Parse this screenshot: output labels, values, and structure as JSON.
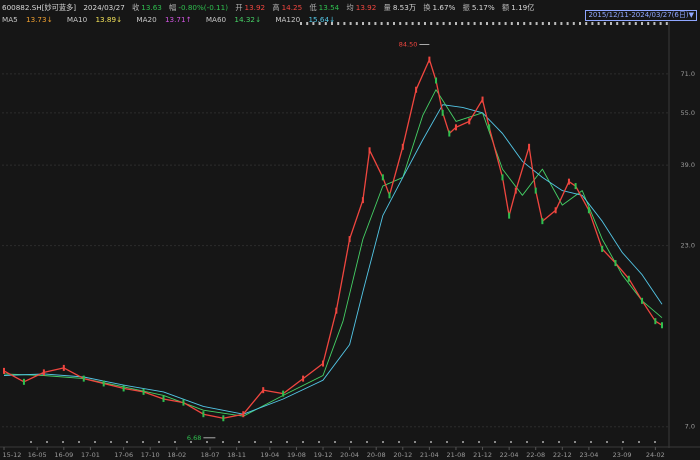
{
  "header": {
    "code": "600882.SH[妙可蓝多]",
    "date": "2024/03/27",
    "close_label": "收",
    "close": "13.63",
    "change_label": "幅",
    "change": "-0.80%(-0.11)",
    "open_label": "开",
    "open": "13.92",
    "high_label": "高",
    "high": "14.25",
    "low_label": "低",
    "low": "13.54",
    "avg_label": "均",
    "avg": "13.92",
    "volume_label": "量",
    "volume": "8.53万",
    "turnover_label": "换",
    "turnover": "1.67%",
    "amplitude_label": "振",
    "amplitude": "5.17%",
    "amount_label": "额",
    "amount": "1.19亿",
    "range": "2015/12/11-2024/03/27(6日)"
  },
  "ma_legend": [
    {
      "name": "MA5",
      "value": "13.73↓",
      "color": "#f0a030"
    },
    {
      "name": "MA10",
      "value": "13.89↓",
      "color": "#f3e35a"
    },
    {
      "name": "MA20",
      "value": "13.71↑",
      "color": "#d055e0"
    },
    {
      "name": "MA60",
      "value": "14.32↓",
      "color": "#45d065"
    },
    {
      "name": "MA120",
      "value": "15.64↓",
      "color": "#53c6e6"
    }
  ],
  "chart_data": {
    "type": "line",
    "yscale": "log",
    "ylim": [
      6.5,
      96
    ],
    "y_ticks": [
      7.0,
      23.0,
      39.0,
      55.0,
      71.0
    ],
    "x_ticks": [
      "15-12",
      "16-05",
      "16-09",
      "17-01",
      "17-06",
      "17-10",
      "18-02",
      "18-07",
      "18-11",
      "19-04",
      "19-08",
      "19-12",
      "20-04",
      "20-08",
      "20-12",
      "21-04",
      "21-08",
      "21-12",
      "22-04",
      "22-08",
      "22-12",
      "23-04",
      "23-09",
      "24-02"
    ],
    "annotations": [
      {
        "text": "84.50",
        "date": "2021-04",
        "value": 84.5,
        "kind": "high"
      },
      {
        "text": "6.68",
        "date": "2018-06",
        "value": 6.68,
        "kind": "low"
      }
    ],
    "series": [
      {
        "name": "Price",
        "color": "#f0463f",
        "x": [
          "2015-12",
          "2016-03",
          "2016-06",
          "2016-09",
          "2016-12",
          "2017-03",
          "2017-06",
          "2017-09",
          "2017-12",
          "2018-03",
          "2018-06",
          "2018-09",
          "2018-12",
          "2019-03",
          "2019-06",
          "2019-09",
          "2019-12",
          "2020-02",
          "2020-04",
          "2020-06",
          "2020-07",
          "2020-09",
          "2020-10",
          "2020-12",
          "2021-02",
          "2021-04",
          "2021-05",
          "2021-06",
          "2021-07",
          "2021-08",
          "2021-10",
          "2021-12",
          "2022-01",
          "2022-03",
          "2022-04",
          "2022-05",
          "2022-07",
          "2022-08",
          "2022-09",
          "2022-11",
          "2023-01",
          "2023-02",
          "2023-04",
          "2023-06",
          "2023-08",
          "2023-10",
          "2023-12",
          "2024-02",
          "2024-03"
        ],
        "values": [
          10.1,
          9.4,
          10.0,
          10.3,
          9.6,
          9.3,
          9.0,
          8.8,
          8.4,
          8.2,
          7.6,
          7.4,
          7.6,
          8.9,
          8.7,
          9.6,
          10.6,
          15.0,
          24.0,
          31.0,
          43.0,
          36.0,
          32.0,
          44.0,
          64.0,
          78.0,
          68.0,
          55.0,
          48.0,
          50.0,
          52.0,
          60.0,
          50.0,
          36.0,
          28.0,
          33.0,
          44.0,
          33.0,
          27.0,
          29.0,
          35.0,
          34.0,
          29.0,
          22.5,
          20.5,
          18.5,
          16.0,
          14.0,
          13.63
        ]
      },
      {
        "name": "MA120",
        "color": "#53c6e6",
        "x": [
          "2015-12",
          "2016-06",
          "2016-12",
          "2017-06",
          "2017-12",
          "2018-06",
          "2018-12",
          "2019-06",
          "2019-12",
          "2020-04",
          "2020-06",
          "2020-09",
          "2020-12",
          "2021-03",
          "2021-06",
          "2021-09",
          "2021-12",
          "2022-03",
          "2022-06",
          "2022-09",
          "2022-12",
          "2023-03",
          "2023-06",
          "2023-09",
          "2023-12",
          "2024-03"
        ],
        "values": [
          9.8,
          9.9,
          9.7,
          9.2,
          8.8,
          8.0,
          7.6,
          8.4,
          9.5,
          12.0,
          17.0,
          28.0,
          36.0,
          46.0,
          58.0,
          57.0,
          55.0,
          48.0,
          40.0,
          36.0,
          33.0,
          32.0,
          27.0,
          22.0,
          19.0,
          15.64
        ]
      },
      {
        "name": "MA60",
        "color": "#45d065",
        "x": [
          "2015-12",
          "2016-06",
          "2016-12",
          "2017-06",
          "2017-12",
          "2018-06",
          "2018-12",
          "2019-06",
          "2019-12",
          "2020-03",
          "2020-06",
          "2020-09",
          "2020-12",
          "2021-03",
          "2021-05",
          "2021-08",
          "2021-12",
          "2022-03",
          "2022-06",
          "2022-09",
          "2022-12",
          "2023-03",
          "2023-06",
          "2023-09",
          "2023-12",
          "2024-03"
        ],
        "values": [
          9.9,
          9.8,
          9.6,
          9.1,
          8.6,
          7.8,
          7.5,
          8.6,
          9.8,
          14.0,
          24.0,
          34.0,
          36.0,
          54.0,
          64.0,
          52.0,
          55.0,
          38.0,
          32.0,
          38.0,
          30.0,
          33.0,
          24.0,
          19.0,
          16.0,
          14.32
        ]
      }
    ]
  }
}
